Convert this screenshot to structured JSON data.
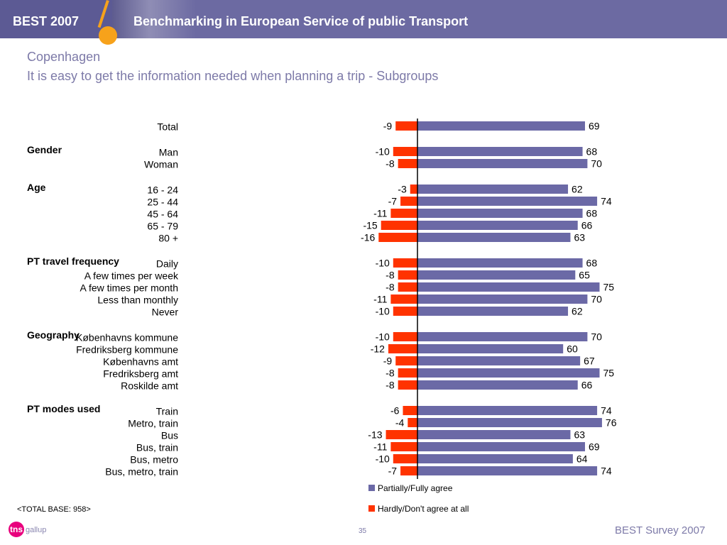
{
  "header": {
    "brand": "BEST 2007",
    "title": "Benchmarking in European Service of public Transport"
  },
  "page": {
    "city": "Copenhagen",
    "subtitle": "It is easy to get the information needed when planning a trip - Subgroups"
  },
  "colors": {
    "agree": "#6b69a6",
    "disagree": "#ff3300",
    "banner": "#6c6aa2",
    "accent": "#f7a21b"
  },
  "chart_data": {
    "type": "bar",
    "orientation": "horizontal",
    "diverging": true,
    "series": [
      {
        "name": "Partially/Fully agree",
        "color": "#6b69a6"
      },
      {
        "name": "Hardly/Don't agree at all",
        "color": "#ff3300"
      }
    ],
    "xlim": [
      -20,
      80
    ],
    "grid": false,
    "legend": "bottom",
    "groups": [
      {
        "name": "",
        "rows": [
          {
            "label": "Total",
            "agree": 69,
            "disagree": -9
          }
        ]
      },
      {
        "name": "Gender",
        "rows": [
          {
            "label": "Man",
            "agree": 68,
            "disagree": -10
          },
          {
            "label": "Woman",
            "agree": 70,
            "disagree": -8
          }
        ]
      },
      {
        "name": "Age",
        "rows": [
          {
            "label": "16 - 24",
            "agree": 62,
            "disagree": -3
          },
          {
            "label": "25 - 44",
            "agree": 74,
            "disagree": -7
          },
          {
            "label": "45 - 64",
            "agree": 68,
            "disagree": -11
          },
          {
            "label": "65 - 79",
            "agree": 66,
            "disagree": -15
          },
          {
            "label": "80 +",
            "agree": 63,
            "disagree": -16
          }
        ]
      },
      {
        "name": "PT travel frequency",
        "rows": [
          {
            "label": "Daily",
            "agree": 68,
            "disagree": -10
          },
          {
            "label": "A few times per week",
            "agree": 65,
            "disagree": -8
          },
          {
            "label": "A few times per month",
            "agree": 75,
            "disagree": -8
          },
          {
            "label": "Less than monthly",
            "agree": 70,
            "disagree": -11
          },
          {
            "label": "Never",
            "agree": 62,
            "disagree": -10
          }
        ]
      },
      {
        "name": "Geography",
        "rows": [
          {
            "label": "Københavns kommune",
            "agree": 70,
            "disagree": -10
          },
          {
            "label": "Fredriksberg kommune",
            "agree": 60,
            "disagree": -12
          },
          {
            "label": "Københavns amt",
            "agree": 67,
            "disagree": -9
          },
          {
            "label": "Fredriksberg amt",
            "agree": 75,
            "disagree": -8
          },
          {
            "label": "Roskilde amt",
            "agree": 66,
            "disagree": -8
          }
        ]
      },
      {
        "name": "PT modes used",
        "rows": [
          {
            "label": "Train",
            "agree": 74,
            "disagree": -6
          },
          {
            "label": "Metro, train",
            "agree": 76,
            "disagree": -4
          },
          {
            "label": "Bus",
            "agree": 63,
            "disagree": -13
          },
          {
            "label": "Bus, train",
            "agree": 69,
            "disagree": -11
          },
          {
            "label": "Bus, metro",
            "agree": 64,
            "disagree": -10
          },
          {
            "label": "Bus, metro, train",
            "agree": 74,
            "disagree": -7
          }
        ]
      }
    ]
  },
  "footer": {
    "base": "<TOTAL BASE: 958>",
    "logo_mark": "tns",
    "logo_sub": "gallup",
    "page_number": "35",
    "survey": "BEST Survey 2007"
  }
}
